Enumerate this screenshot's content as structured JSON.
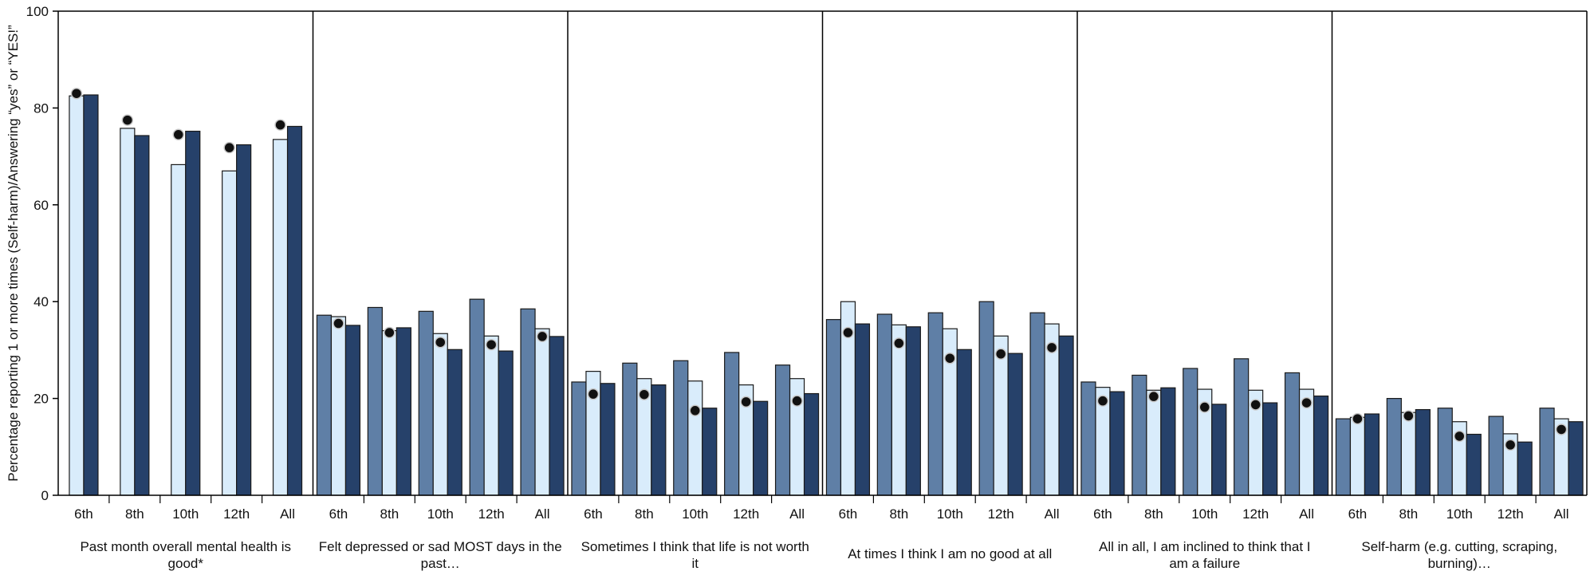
{
  "chart_data": {
    "type": "bar",
    "ylabel": "Percentage reporting 1 or more times (Self-harm)/Answering “yes” or “YES!”",
    "ylim": [
      0,
      100
    ],
    "yticks": [
      0,
      20,
      40,
      60,
      80,
      100
    ],
    "grid": false,
    "categories": [
      "6th",
      "8th",
      "10th",
      "12th",
      "All"
    ],
    "colors": {
      "dark_series": "#5f7fa6",
      "light_series": "#d9ecfb",
      "navy_series": "#26416a",
      "marker": "#111111"
    },
    "groups": [
      {
        "label_lines": [
          "Past month overall mental health is",
          "good*"
        ],
        "dark": [
          null,
          null,
          null,
          null,
          null
        ],
        "light": [
          82.5,
          75.8,
          68.3,
          67.0,
          73.5
        ],
        "navy": [
          82.7,
          74.3,
          75.2,
          72.4,
          76.2
        ],
        "marker": [
          83.0,
          77.5,
          74.5,
          71.8,
          76.5
        ]
      },
      {
        "label_lines": [
          "Felt depressed or sad MOST days in the",
          "past…"
        ],
        "dark": [
          37.2,
          38.8,
          38.0,
          40.5,
          38.5
        ],
        "light": [
          36.9,
          34.0,
          33.4,
          32.9,
          34.4
        ],
        "navy": [
          35.1,
          34.6,
          30.1,
          29.8,
          32.8
        ],
        "marker": [
          35.5,
          33.6,
          31.6,
          31.1,
          32.8
        ]
      },
      {
        "label_lines": [
          "Sometimes I think that life is not worth",
          "it"
        ],
        "dark": [
          23.4,
          27.3,
          27.8,
          29.5,
          26.9
        ],
        "light": [
          25.6,
          24.1,
          23.6,
          22.8,
          24.1
        ],
        "navy": [
          23.1,
          22.8,
          18.0,
          19.4,
          21.0
        ],
        "marker": [
          20.9,
          20.8,
          17.5,
          19.3,
          19.5
        ]
      },
      {
        "label_lines": [
          "At times I think I am no good at all"
        ],
        "dark": [
          36.3,
          37.4,
          37.7,
          40.0,
          37.7
        ],
        "light": [
          40.0,
          35.2,
          34.4,
          32.9,
          35.4
        ],
        "navy": [
          35.4,
          34.8,
          30.1,
          29.3,
          32.9
        ],
        "marker": [
          33.6,
          31.4,
          28.3,
          29.2,
          30.5
        ]
      },
      {
        "label_lines": [
          "All in all, I am inclined to think that I",
          "am a failure"
        ],
        "dark": [
          23.4,
          24.8,
          26.2,
          28.2,
          25.3
        ],
        "light": [
          22.3,
          21.7,
          21.9,
          21.7,
          21.9
        ],
        "navy": [
          21.4,
          22.2,
          18.8,
          19.1,
          20.5
        ],
        "marker": [
          19.5,
          20.4,
          18.2,
          18.7,
          19.1
        ]
      },
      {
        "label_lines": [
          "Self-harm (e.g. cutting, scraping,",
          "burning)…"
        ],
        "dark": [
          15.8,
          20.0,
          18.0,
          16.3,
          18.0
        ],
        "light": [
          16.1,
          17.1,
          15.2,
          12.7,
          15.8
        ],
        "navy": [
          16.8,
          17.7,
          12.6,
          11.0,
          15.2
        ],
        "marker": [
          15.8,
          16.4,
          12.2,
          10.4,
          13.6
        ]
      }
    ]
  }
}
